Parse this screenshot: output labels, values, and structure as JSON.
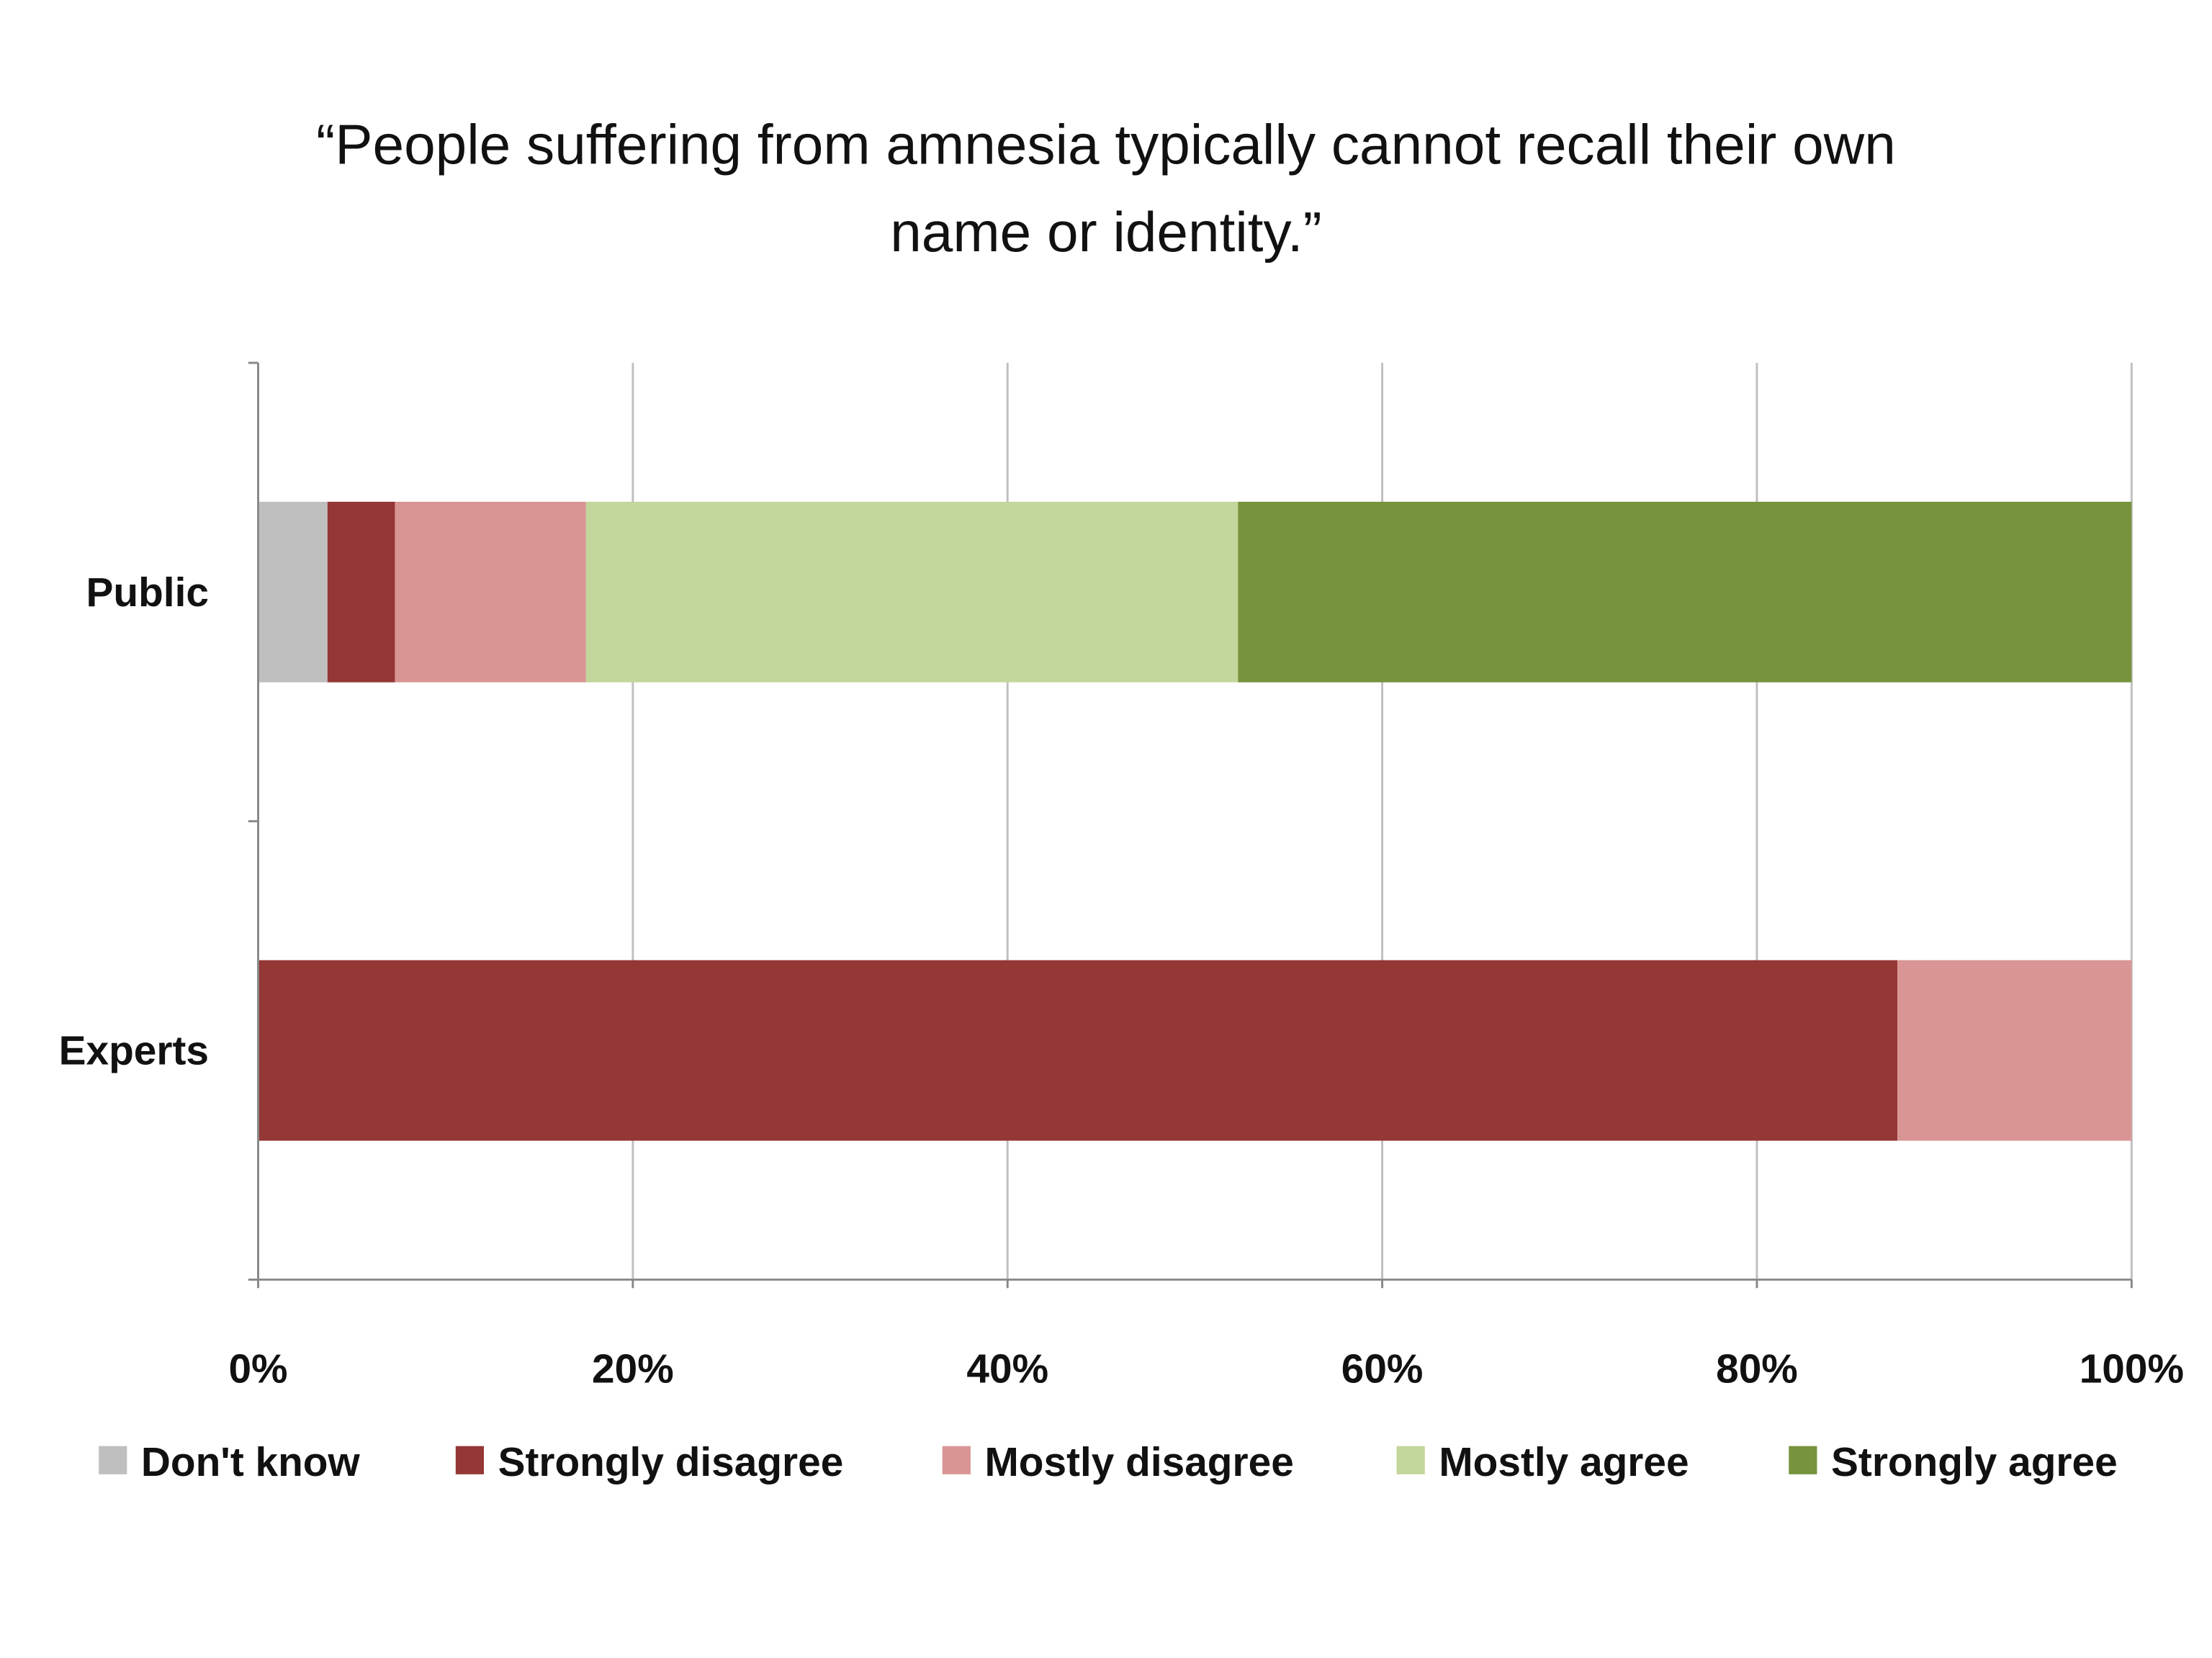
{
  "chart_data": {
    "type": "bar",
    "orientation": "horizontal",
    "stacked": "percent",
    "title": [
      "“People suffering from amnesia typically cannot recall their own",
      "name or identity.”"
    ],
    "categories": [
      "Public",
      "Experts"
    ],
    "series": [
      {
        "name": "Don't know",
        "color": "#bfbfbf",
        "values": [
          3.7,
          0
        ]
      },
      {
        "name": "Strongly disagree",
        "color": "#953735",
        "values": [
          3.6,
          87.5
        ]
      },
      {
        "name": "Mostly disagree",
        "color": "#d99594",
        "values": [
          10.2,
          12.5
        ]
      },
      {
        "name": "Mostly agree",
        "color": "#c3d69b",
        "values": [
          34.8,
          0
        ]
      },
      {
        "name": "Strongly agree",
        "color": "#77933c",
        "values": [
          47.7,
          0
        ]
      }
    ],
    "xlim": [
      0,
      100
    ],
    "xticks": [
      "0%",
      "20%",
      "40%",
      "60%",
      "80%",
      "100%"
    ],
    "xlabel": "",
    "ylabel": "",
    "grid": "vertical",
    "legend": "bottom"
  }
}
